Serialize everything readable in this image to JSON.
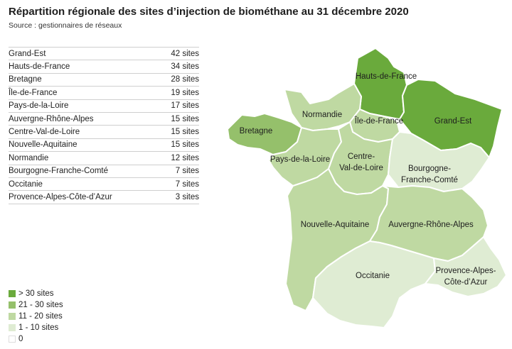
{
  "title": "Répartition régionale des sites d’injection de biométhane au 31 décembre 2020",
  "source": "Source : gestionnaires de réseaux",
  "table": [
    {
      "region": "Grand-Est",
      "sites": "42 sites"
    },
    {
      "region": "Hauts-de-France",
      "sites": "34 sites"
    },
    {
      "region": "Bretagne",
      "sites": "28 sites"
    },
    {
      "region": "Île-de-France",
      "sites": "19 sites"
    },
    {
      "region": "Pays-de-la-Loire",
      "sites": "17 sites"
    },
    {
      "region": "Auvergne-Rhône-Alpes",
      "sites": "15 sites"
    },
    {
      "region": "Centre-Val-de-Loire",
      "sites": "15 sites"
    },
    {
      "region": "Nouvelle-Aquitaine",
      "sites": "15 sites"
    },
    {
      "region": "Normandie",
      "sites": "12 sites"
    },
    {
      "region": "Bourgogne-Franche-Comté",
      "sites": "7 sites"
    },
    {
      "region": "Occitanie",
      "sites": "7 sites"
    },
    {
      "region": "Provence-Alpes-Côte-d’Azur",
      "sites": "3 sites"
    }
  ],
  "legend": [
    {
      "label": "> 30 sites",
      "color": "#6aaa3c"
    },
    {
      "label": "21 - 30 sites",
      "color": "#95c06b"
    },
    {
      "label": "11 - 20 sites",
      "color": "#bfd9a2"
    },
    {
      "label": "1 - 10 sites",
      "color": "#dfecd3"
    },
    {
      "label": "0",
      "color": "#ffffff"
    }
  ],
  "map": {
    "labels": {
      "hauts_de_france": "Hauts-de-France",
      "grand_est": "Grand-Est",
      "normandie": "Normandie",
      "ile_de_france": "Île-de-France",
      "bretagne": "Bretagne",
      "pays_de_la_loire": "Pays-de-la-Loire",
      "centre_1": "Centre-",
      "centre_2": "Val-de-Loire",
      "bourgogne_1": "Bourgogne-",
      "bourgogne_2": "Franche-Comté",
      "nouvelle_aquitaine": "Nouvelle-Aquitaine",
      "auvergne": "Auvergne-Rhône-Alpes",
      "occitanie": "Occitanie",
      "paca_1": "Provence-Alpes-",
      "paca_2": "Côte-d’Azur"
    },
    "fills": {
      "hauts_de_france": "#6aaa3c",
      "grand_est": "#6aaa3c",
      "bretagne": "#95c06b",
      "normandie": "#bfd9a2",
      "ile_de_france": "#bfd9a2",
      "pays_de_la_loire": "#bfd9a2",
      "centre": "#bfd9a2",
      "nouvelle_aquitaine": "#bfd9a2",
      "auvergne": "#bfd9a2",
      "bourgogne": "#dfecd3",
      "occitanie": "#dfecd3",
      "paca": "#dfecd3"
    }
  }
}
